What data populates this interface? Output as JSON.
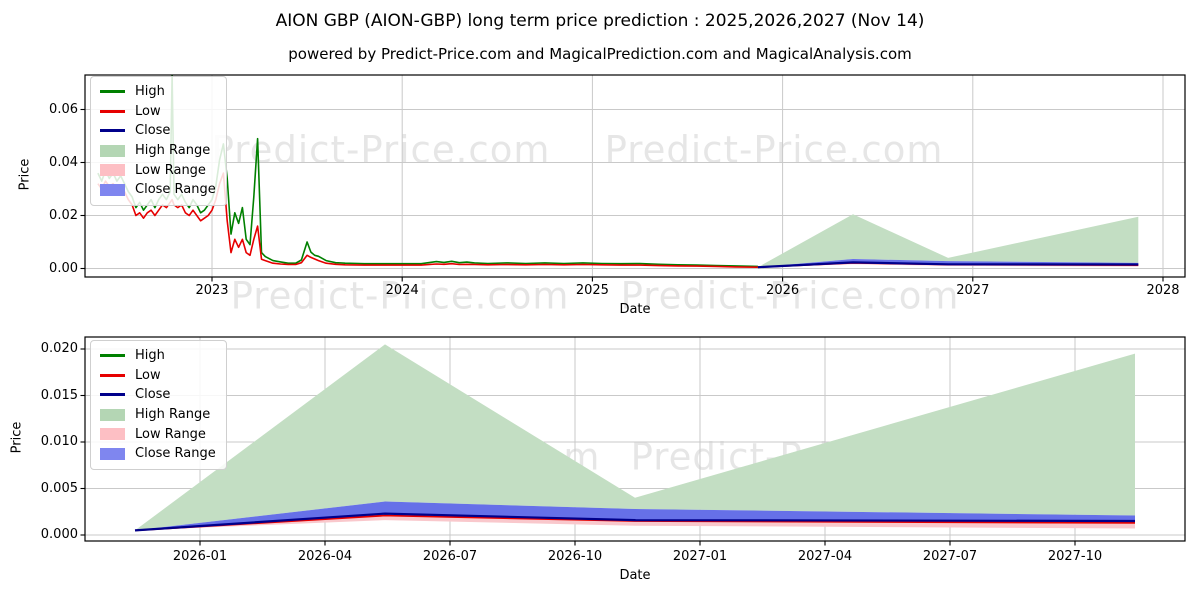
{
  "title": "AION GBP (AION-GBP) long term price prediction : 2025,2026,2027 (Nov 14)",
  "subtitle": "powered by Predict-Price.com and MagicalPrediction.com and MagicalAnalysis.com",
  "watermark": {
    "text": "Predict-Price.com"
  },
  "colors": {
    "high_line": "#008000",
    "low_line": "#e60000",
    "close_line": "#00008b",
    "high_range_fill": "#c3dec3",
    "low_range_fill": "#f9c8cc",
    "close_range_fill": "#6670e8",
    "legend_high_range": "#b4d6b4",
    "legend_low_range": "#fdbfc4",
    "legend_close_range": "#7f86ef",
    "grid": "#c9c9c9",
    "spine": "#000000"
  },
  "chart_data": [
    {
      "type": "line",
      "name": "long-term-history-and-forecast",
      "xlabel": "Date",
      "ylabel": "Price",
      "grid": true,
      "legend_position": "upper left",
      "xlim_years": [
        2022.33,
        2028.12
      ],
      "ylim": [
        -0.0032,
        0.0731
      ],
      "x_ticks": [
        {
          "v": 2023,
          "label": "2023"
        },
        {
          "v": 2024,
          "label": "2024"
        },
        {
          "v": 2025,
          "label": "2025"
        },
        {
          "v": 2026,
          "label": "2026"
        },
        {
          "v": 2027,
          "label": "2027"
        },
        {
          "v": 2028,
          "label": "2028"
        }
      ],
      "y_ticks": [
        {
          "v": 0.0,
          "label": "0.00"
        },
        {
          "v": 0.02,
          "label": "0.02"
        },
        {
          "v": 0.04,
          "label": "0.04"
        },
        {
          "v": 0.06,
          "label": "0.06"
        }
      ],
      "legend": [
        {
          "label": "High",
          "type": "line",
          "color": "#008000"
        },
        {
          "label": "Low",
          "type": "line",
          "color": "#e60000"
        },
        {
          "label": "Close",
          "type": "line",
          "color": "#00008b"
        },
        {
          "label": "High Range",
          "type": "fill",
          "color": "#b4d6b4"
        },
        {
          "label": "Low Range",
          "type": "fill",
          "color": "#fdbfc4"
        },
        {
          "label": "Close Range",
          "type": "fill",
          "color": "#7f86ef"
        }
      ],
      "historical_points_thl": [
        [
          2022.4,
          0.036,
          0.032
        ],
        [
          2022.42,
          0.033,
          0.03
        ],
        [
          2022.44,
          0.037,
          0.033
        ],
        [
          2022.46,
          0.034,
          0.031
        ],
        [
          2022.48,
          0.036,
          0.032
        ],
        [
          2022.5,
          0.033,
          0.03
        ],
        [
          2022.52,
          0.035,
          0.031
        ],
        [
          2022.54,
          0.032,
          0.029
        ],
        [
          2022.56,
          0.029,
          0.026
        ],
        [
          2022.58,
          0.027,
          0.024
        ],
        [
          2022.6,
          0.023,
          0.02
        ],
        [
          2022.62,
          0.025,
          0.021
        ],
        [
          2022.64,
          0.022,
          0.019
        ],
        [
          2022.66,
          0.024,
          0.021
        ],
        [
          2022.68,
          0.026,
          0.022
        ],
        [
          2022.7,
          0.023,
          0.02
        ],
        [
          2022.72,
          0.026,
          0.022
        ],
        [
          2022.74,
          0.028,
          0.024
        ],
        [
          2022.76,
          0.026,
          0.023
        ],
        [
          2022.78,
          0.029,
          0.025
        ],
        [
          2022.79,
          0.073,
          0.026
        ],
        [
          2022.8,
          0.028,
          0.024
        ],
        [
          2022.82,
          0.026,
          0.023
        ],
        [
          2022.84,
          0.028,
          0.024
        ],
        [
          2022.86,
          0.025,
          0.021
        ],
        [
          2022.88,
          0.023,
          0.02
        ],
        [
          2022.9,
          0.026,
          0.022
        ],
        [
          2022.92,
          0.024,
          0.02
        ],
        [
          2022.94,
          0.021,
          0.018
        ],
        [
          2022.96,
          0.022,
          0.019
        ],
        [
          2022.98,
          0.024,
          0.02
        ],
        [
          2023.0,
          0.026,
          0.022
        ],
        [
          2023.02,
          0.031,
          0.026
        ],
        [
          2023.04,
          0.041,
          0.032
        ],
        [
          2023.06,
          0.047,
          0.036
        ],
        [
          2023.08,
          0.034,
          0.018
        ],
        [
          2023.1,
          0.013,
          0.006
        ],
        [
          2023.12,
          0.021,
          0.011
        ],
        [
          2023.14,
          0.017,
          0.008
        ],
        [
          2023.16,
          0.023,
          0.011
        ],
        [
          2023.18,
          0.011,
          0.006
        ],
        [
          2023.2,
          0.009,
          0.005
        ],
        [
          2023.22,
          0.027,
          0.011
        ],
        [
          2023.24,
          0.049,
          0.016
        ],
        [
          2023.26,
          0.006,
          0.0035
        ],
        [
          2023.28,
          0.0045,
          0.003
        ],
        [
          2023.32,
          0.003,
          0.002
        ],
        [
          2023.36,
          0.0025,
          0.0017
        ],
        [
          2023.4,
          0.002,
          0.0015
        ],
        [
          2023.44,
          0.002,
          0.0015
        ],
        [
          2023.47,
          0.0032,
          0.0022
        ],
        [
          2023.5,
          0.01,
          0.005
        ],
        [
          2023.52,
          0.0062,
          0.0042
        ],
        [
          2023.54,
          0.005,
          0.0036
        ],
        [
          2023.56,
          0.0046,
          0.003
        ],
        [
          2023.6,
          0.003,
          0.002
        ],
        [
          2023.65,
          0.0022,
          0.0016
        ],
        [
          2023.7,
          0.002,
          0.0014
        ],
        [
          2023.8,
          0.0018,
          0.0013
        ],
        [
          2023.9,
          0.0018,
          0.0013
        ],
        [
          2024.0,
          0.0018,
          0.0013
        ],
        [
          2024.1,
          0.0018,
          0.0013
        ],
        [
          2024.18,
          0.0026,
          0.0017
        ],
        [
          2024.22,
          0.0023,
          0.0016
        ],
        [
          2024.26,
          0.0027,
          0.0018
        ],
        [
          2024.3,
          0.0022,
          0.0015
        ],
        [
          2024.34,
          0.0024,
          0.0016
        ],
        [
          2024.38,
          0.0021,
          0.0015
        ],
        [
          2024.45,
          0.0019,
          0.0014
        ],
        [
          2024.55,
          0.0021,
          0.0015
        ],
        [
          2024.65,
          0.0019,
          0.0014
        ],
        [
          2024.75,
          0.0021,
          0.0015
        ],
        [
          2024.85,
          0.0019,
          0.0014
        ],
        [
          2024.95,
          0.0021,
          0.0015
        ],
        [
          2025.05,
          0.0019,
          0.0014
        ],
        [
          2025.15,
          0.0018,
          0.0013
        ],
        [
          2025.25,
          0.0019,
          0.0013
        ],
        [
          2025.35,
          0.0016,
          0.0011
        ],
        [
          2025.45,
          0.0014,
          0.001
        ],
        [
          2025.55,
          0.0013,
          0.0009
        ],
        [
          2025.65,
          0.0011,
          0.0008
        ],
        [
          2025.75,
          0.001,
          0.0006
        ],
        [
          2025.87,
          0.0008,
          0.0005
        ]
      ],
      "forecast": {
        "x": [
          2025.87,
          2026.37,
          2026.87,
          2027.87
        ],
        "x_labels": [
          "2025-11",
          "2026-05",
          "2026-11",
          "2027-11"
        ],
        "high_range_top": [
          0.0005,
          0.0205,
          0.004,
          0.0195
        ],
        "close_range_top": [
          0.0005,
          0.0036,
          0.0028,
          0.0021
        ],
        "close": [
          0.0005,
          0.0023,
          0.0016,
          0.0015
        ],
        "low": [
          0.0005,
          0.0021,
          0.0015,
          0.0013
        ],
        "low_range_bottom": [
          0.0005,
          0.0016,
          0.001,
          0.0007
        ]
      }
    },
    {
      "type": "line",
      "name": "forecast-detail",
      "xlabel": "Date",
      "ylabel": "Price",
      "grid": true,
      "legend_position": "upper left",
      "xlim_years": [
        2025.77,
        2027.97
      ],
      "ylim": [
        -0.00065,
        0.0213
      ],
      "x_ticks": [
        {
          "v": 2026.0,
          "label": "2026-01"
        },
        {
          "v": 2026.25,
          "label": "2026-04"
        },
        {
          "v": 2026.5,
          "label": "2026-07"
        },
        {
          "v": 2026.75,
          "label": "2026-10"
        },
        {
          "v": 2027.0,
          "label": "2027-01"
        },
        {
          "v": 2027.25,
          "label": "2027-04"
        },
        {
          "v": 2027.5,
          "label": "2027-07"
        },
        {
          "v": 2027.75,
          "label": "2027-10"
        }
      ],
      "y_ticks": [
        {
          "v": 0.0,
          "label": "0.000"
        },
        {
          "v": 0.005,
          "label": "0.005"
        },
        {
          "v": 0.01,
          "label": "0.010"
        },
        {
          "v": 0.015,
          "label": "0.015"
        },
        {
          "v": 0.02,
          "label": "0.020"
        }
      ],
      "legend": [
        {
          "label": "High",
          "type": "line",
          "color": "#008000"
        },
        {
          "label": "Low",
          "type": "line",
          "color": "#e60000"
        },
        {
          "label": "Close",
          "type": "line",
          "color": "#00008b"
        },
        {
          "label": "High Range",
          "type": "fill",
          "color": "#b4d6b4"
        },
        {
          "label": "Low Range",
          "type": "fill",
          "color": "#fdbfc4"
        },
        {
          "label": "Close Range",
          "type": "fill",
          "color": "#7f86ef"
        }
      ],
      "forecast": {
        "x": [
          2025.87,
          2026.37,
          2026.87,
          2027.87
        ],
        "x_labels": [
          "2025-11",
          "2026-05",
          "2026-11",
          "2027-11"
        ],
        "high_range_top": [
          0.0005,
          0.0205,
          0.004,
          0.0195
        ],
        "close_range_top": [
          0.0005,
          0.0036,
          0.0028,
          0.0021
        ],
        "close": [
          0.0005,
          0.0023,
          0.0016,
          0.0015
        ],
        "low": [
          0.0005,
          0.0021,
          0.0015,
          0.0013
        ],
        "low_range_bottom": [
          0.0005,
          0.0016,
          0.001,
          0.0007
        ]
      }
    }
  ]
}
